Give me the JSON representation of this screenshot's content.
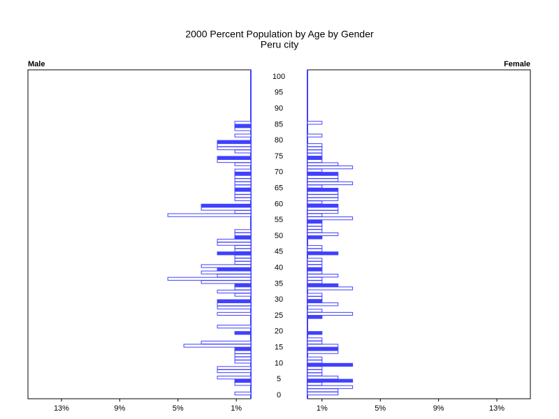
{
  "chart_data": {
    "type": "pyramid",
    "title": "2000 Percent Population by Age by Gender",
    "subtitle": "Peru city",
    "categories": [
      "0",
      null,
      null,
      null,
      null,
      "5",
      null,
      null,
      null,
      null,
      "10",
      null,
      null,
      null,
      null,
      "15",
      null,
      null,
      null,
      null,
      "20",
      null,
      null,
      null,
      null,
      "25",
      null,
      null,
      null,
      null,
      "30",
      null,
      null,
      null,
      null,
      "35",
      null,
      null,
      null,
      null,
      "40",
      null,
      null,
      null,
      null,
      "45",
      null,
      null,
      null,
      null,
      "50",
      null,
      null,
      null,
      null,
      "55",
      null,
      null,
      null,
      null,
      "60",
      null,
      null,
      null,
      null,
      "65",
      null,
      null,
      null,
      null,
      "70",
      null,
      null,
      null,
      null,
      "75",
      null,
      null,
      null,
      null,
      "80",
      null,
      null,
      null,
      null,
      "85",
      null,
      null,
      null,
      null,
      "90",
      null,
      null,
      null,
      null,
      "95",
      null,
      null,
      null,
      null,
      "100"
    ],
    "series": [
      {
        "name": "Male",
        "color": "#4040ff",
        "values": [
          0,
          1.1,
          0,
          0,
          1.1,
          1.1,
          2.3,
          0,
          2.3,
          2.3,
          0,
          1.1,
          1.1,
          1.1,
          1.1,
          1.1,
          4.6,
          3.4,
          0,
          0,
          1.1,
          0,
          2.3,
          0,
          0,
          0,
          2.3,
          0,
          2.3,
          2.3,
          2.3,
          0,
          1.1,
          2.3,
          1.1,
          1.1,
          3.4,
          5.7,
          2.3,
          3.4,
          2.3,
          3.4,
          1.1,
          1.1,
          1.1,
          2.3,
          1.1,
          1.1,
          2.3,
          2.3,
          1.1,
          1.1,
          1.1,
          0,
          0,
          0,
          0,
          5.7,
          1.1,
          3.4,
          3.4,
          0,
          1.1,
          1.1,
          1.1,
          1.1,
          1.1,
          1.1,
          1.1,
          1.1,
          1.1,
          1.1,
          0,
          1.1,
          2.3,
          2.3,
          0,
          1.1,
          2.3,
          2.3,
          2.3,
          0,
          1.1,
          0,
          1.1,
          1.1,
          1.1,
          0,
          0,
          0,
          0,
          0,
          0,
          0,
          0,
          0,
          0,
          0,
          0,
          0,
          0
        ]
      },
      {
        "name": "Female",
        "color": "#4040ff",
        "values": [
          0,
          2.1,
          2.1,
          3.1,
          1,
          3.1,
          2.1,
          1,
          1,
          1,
          3.1,
          1,
          1,
          0,
          2.1,
          2.1,
          2.1,
          1,
          1,
          0,
          1,
          0,
          0,
          0,
          0,
          1,
          3.1,
          1,
          0,
          2.1,
          1,
          1,
          1,
          0,
          3.1,
          2.1,
          1,
          1,
          2.1,
          1,
          1,
          1,
          1,
          1,
          0,
          2.1,
          1,
          1,
          0,
          0,
          1,
          2.1,
          1,
          1,
          1,
          1,
          3.1,
          1,
          2.1,
          2.1,
          2.1,
          1,
          2.1,
          2.1,
          2.1,
          2.1,
          1,
          3.1,
          2.1,
          2.1,
          2.1,
          1,
          3.1,
          2.1,
          1,
          1,
          1,
          1,
          1,
          1,
          0,
          0,
          1,
          0,
          0,
          0,
          1,
          0,
          0,
          0,
          0,
          0,
          0,
          0,
          0,
          0,
          0,
          0,
          0,
          0,
          0
        ]
      }
    ],
    "xlim": [
      0,
      15.3
    ],
    "xticks": [
      {
        "value": 1,
        "label": "1%"
      },
      {
        "value": 5,
        "label": "5%"
      },
      {
        "value": 9,
        "label": "9%"
      },
      {
        "value": 13,
        "label": "13%"
      }
    ]
  }
}
